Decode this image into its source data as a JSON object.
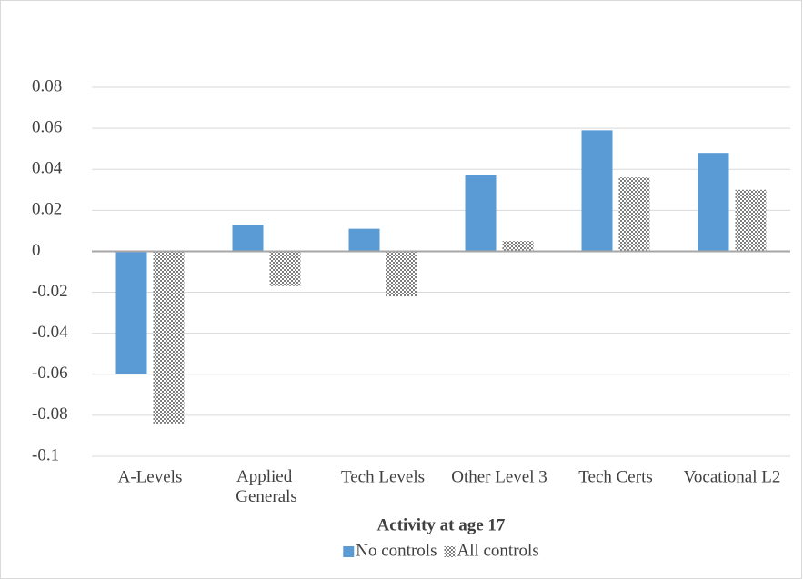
{
  "chart_data": {
    "type": "bar",
    "x_label": "Activity at age 17",
    "categories": [
      "A-Levels",
      "Applied Generals",
      "Tech Levels",
      "Other Level 3",
      "Tech Certs",
      "Vocational L2"
    ],
    "series": [
      {
        "name": "No controls",
        "color": "#5b9bd5",
        "values": [
          -0.06,
          0.013,
          0.011,
          0.037,
          0.059,
          0.048
        ]
      },
      {
        "name": "All controls",
        "color": "#7f7f7f",
        "pattern": "checker",
        "values": [
          -0.084,
          -0.017,
          -0.022,
          0.005,
          0.036,
          0.03
        ]
      }
    ],
    "ylim": [
      -0.1,
      0.08
    ],
    "yticks": [
      -0.1,
      -0.08,
      -0.06,
      -0.04,
      -0.02,
      0,
      0.02,
      0.04,
      0.06,
      0.08
    ],
    "grid": true,
    "legend": "bottom"
  }
}
